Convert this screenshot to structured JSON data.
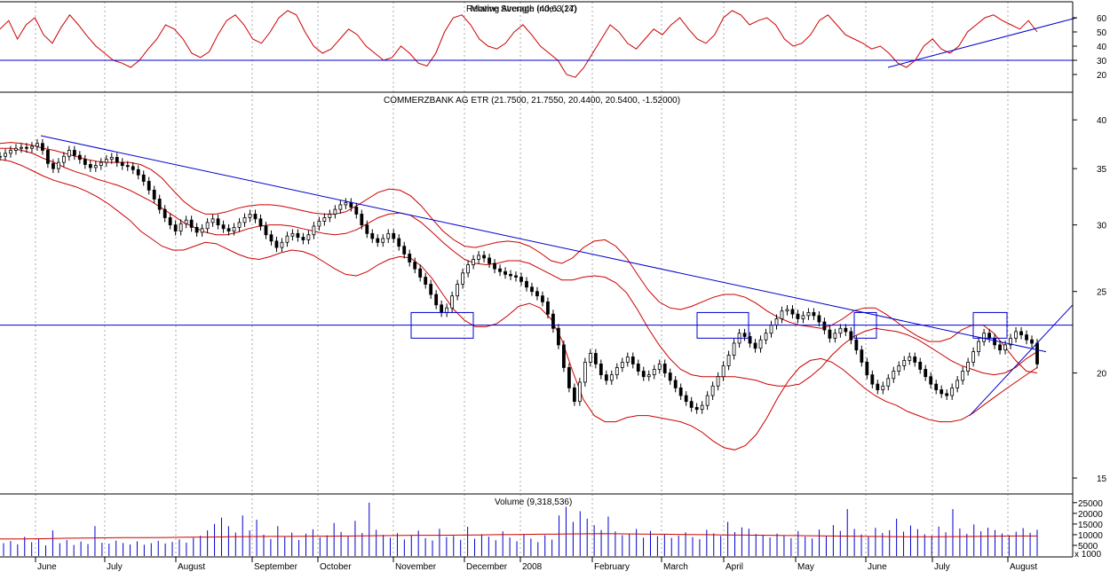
{
  "chart_data": [
    {
      "type": "line",
      "title": "Relative Strength Index (14)",
      "title_overlap": "Moving Average (40,63,27)",
      "series": [
        {
          "name": "RSI",
          "values": [
            52,
            58,
            45,
            55,
            60,
            48,
            42,
            53,
            62,
            55,
            47,
            40,
            35,
            30,
            28,
            25,
            30,
            38,
            45,
            55,
            52,
            45,
            35,
            32,
            36,
            48,
            58,
            62,
            55,
            45,
            42,
            50,
            60,
            65,
            62,
            50,
            40,
            35,
            38,
            45,
            52,
            48,
            40,
            35,
            30,
            32,
            40,
            35,
            28,
            26,
            35,
            50,
            60,
            62,
            55,
            45,
            40,
            38,
            42,
            50,
            55,
            48,
            40,
            35,
            30,
            20,
            18,
            25,
            35,
            45,
            55,
            50,
            42,
            38,
            45,
            52,
            48,
            55,
            60,
            52,
            45,
            42,
            48,
            60,
            65,
            62,
            55,
            58,
            60,
            55,
            45,
            40,
            42,
            48,
            58,
            62,
            55,
            48,
            45,
            42,
            38,
            40,
            35,
            28,
            25,
            30,
            40,
            45,
            38,
            35,
            40,
            50,
            55,
            60,
            62,
            58,
            55,
            52,
            58,
            50
          ]
        }
      ],
      "hlines": [
        30
      ],
      "ylim": [
        10,
        70
      ],
      "yticks": [
        20,
        30,
        40,
        50,
        60
      ],
      "trendline": {
        "from": [
          0.8,
          25
        ],
        "to": [
          0.97,
          60
        ]
      }
    },
    {
      "type": "candlestick",
      "title": "COMMERZBANK AG  ETR (21.7500, 21.7550, 20.4400, 20.5400, -1.52000)",
      "yscale": "log",
      "ylim": [
        14.5,
        41.5
      ],
      "yticks": [
        15,
        20,
        25,
        30,
        35,
        40
      ],
      "close": [
        36.2,
        36.5,
        36.8,
        37.0,
        37.1,
        37.0,
        37.2,
        37.5,
        36.8,
        35.5,
        35.0,
        35.6,
        36.2,
        36.8,
        36.3,
        35.9,
        35.4,
        35.1,
        35.3,
        35.6,
        35.9,
        36.1,
        35.6,
        35.3,
        35.2,
        34.9,
        34.4,
        33.8,
        33.0,
        32.2,
        31.3,
        30.6,
        30.0,
        29.5,
        30.1,
        30.4,
        29.8,
        29.4,
        29.7,
        30.2,
        30.5,
        30.0,
        29.7,
        29.5,
        29.8,
        30.2,
        30.6,
        30.9,
        30.5,
        29.9,
        29.2,
        28.7,
        28.2,
        28.6,
        29.1,
        29.3,
        29.0,
        28.8,
        29.2,
        29.9,
        30.3,
        30.6,
        30.9,
        31.3,
        31.7,
        31.9,
        31.5,
        30.9,
        30.0,
        29.3,
        28.9,
        28.6,
        28.9,
        29.3,
        28.9,
        28.3,
        27.7,
        27.1,
        26.6,
        26.0,
        25.5,
        24.8,
        24.1,
        23.6,
        23.9,
        24.7,
        25.5,
        26.3,
        26.9,
        27.3,
        27.6,
        27.4,
        27.0,
        26.6,
        26.4,
        26.2,
        26.1,
        26.0,
        25.7,
        25.3,
        25.0,
        24.7,
        24.3,
        23.5,
        22.6,
        21.6,
        20.3,
        19.2,
        18.5,
        19.5,
        20.6,
        21.1,
        20.5,
        19.9,
        19.6,
        19.9,
        20.3,
        20.6,
        20.9,
        20.5,
        20.1,
        19.8,
        19.9,
        20.2,
        20.5,
        20.0,
        19.6,
        19.2,
        18.8,
        18.5,
        18.2,
        18.1,
        18.3,
        18.8,
        19.3,
        19.8,
        20.4,
        21.0,
        21.7,
        22.3,
        22.1,
        21.7,
        21.4,
        21.9,
        22.3,
        22.8,
        23.2,
        23.7,
        23.8,
        23.5,
        23.2,
        23.4,
        23.6,
        23.4,
        23.0,
        22.5,
        22.0,
        22.3,
        22.6,
        22.4,
        21.9,
        21.3,
        20.6,
        19.9,
        19.4,
        19.1,
        19.3,
        19.7,
        20.1,
        20.4,
        20.7,
        20.9,
        20.6,
        20.2,
        19.8,
        19.4,
        19.1,
        18.9,
        18.8,
        19.2,
        19.6,
        20.1,
        20.6,
        21.2,
        21.8,
        22.3,
        22.0,
        21.6,
        21.3,
        21.6,
        22.0,
        22.4,
        22.2,
        21.9,
        21.7,
        20.5
      ],
      "bollinger_upper": [
        37.5,
        37.6,
        37.5,
        37.3,
        37.0,
        36.8,
        36.5,
        36.2,
        35.9,
        35.7,
        35.6,
        35.6,
        35.6,
        35.4,
        34.9,
        34.1,
        33.0,
        32.0,
        31.3,
        30.9,
        30.9,
        31.1,
        31.4,
        31.6,
        31.7,
        31.7,
        31.6,
        31.4,
        31.2,
        31.0,
        30.9,
        30.9,
        31.1,
        31.6,
        32.2,
        32.8,
        33.1,
        33.0,
        32.5,
        31.6,
        30.5,
        29.5,
        28.8,
        28.3,
        28.2,
        28.4,
        28.6,
        28.7,
        28.6,
        28.3,
        27.8,
        27.2,
        27.0,
        27.4,
        28.2,
        28.7,
        28.8,
        28.3,
        27.4,
        26.2,
        25.1,
        24.3,
        23.9,
        23.8,
        24.0,
        24.3,
        24.6,
        24.8,
        24.8,
        24.6,
        24.2,
        23.7,
        23.3,
        23.0,
        22.8,
        22.7,
        22.6,
        22.8,
        23.2,
        23.7,
        23.9,
        23.9,
        23.5,
        23.0,
        22.5,
        22.1,
        21.8,
        21.8,
        22.0,
        22.5,
        22.8,
        22.8,
        22.3,
        21.5,
        20.7,
        20.1,
        20.0
      ],
      "bollinger_mid": [
        37.0,
        37.0,
        36.8,
        36.5,
        36.0,
        35.6,
        35.1,
        34.7,
        34.4,
        34.0,
        33.7,
        33.4,
        33.0,
        32.5,
        32.0,
        31.4,
        30.8,
        30.2,
        29.8,
        29.4,
        29.2,
        29.2,
        29.4,
        29.7,
        29.9,
        30.0,
        30.0,
        29.9,
        29.7,
        29.5,
        29.3,
        29.2,
        29.3,
        29.6,
        30.1,
        30.6,
        30.9,
        31.0,
        30.8,
        30.2,
        29.4,
        28.6,
        27.9,
        27.3,
        27.0,
        26.9,
        27.0,
        27.2,
        27.2,
        27.0,
        26.6,
        26.2,
        25.8,
        25.8,
        26.0,
        26.1,
        26.0,
        25.6,
        24.9,
        23.8,
        22.6,
        21.6,
        20.8,
        20.2,
        19.9,
        19.8,
        19.8,
        19.8,
        19.8,
        19.7,
        19.6,
        19.4,
        19.3,
        19.3,
        19.4,
        19.8,
        20.3,
        21.0,
        21.6,
        22.1,
        22.4,
        22.6,
        22.5,
        22.4,
        22.2,
        21.9,
        21.5,
        21.1,
        20.7,
        20.4,
        20.2,
        20.0,
        19.9,
        20.0,
        20.3,
        20.8,
        21.2
      ],
      "bollinger_lower": [
        35.9,
        35.7,
        35.3,
        34.8,
        34.3,
        33.9,
        33.6,
        33.3,
        32.9,
        32.4,
        31.8,
        31.1,
        30.4,
        29.5,
        28.9,
        28.3,
        28.0,
        28.0,
        28.3,
        28.6,
        28.5,
        28.1,
        27.7,
        27.4,
        27.3,
        27.5,
        27.8,
        28.0,
        27.9,
        27.6,
        27.1,
        26.6,
        26.2,
        26.1,
        26.4,
        26.9,
        27.3,
        27.5,
        27.4,
        26.8,
        25.9,
        24.8,
        23.8,
        23.1,
        22.7,
        22.7,
        22.9,
        23.4,
        24.0,
        24.2,
        23.9,
        23.2,
        21.9,
        20.1,
        18.6,
        17.8,
        17.5,
        17.5,
        17.7,
        17.8,
        17.8,
        17.7,
        17.6,
        17.5,
        17.3,
        17.0,
        16.6,
        16.3,
        16.2,
        16.4,
        16.9,
        17.7,
        18.7,
        19.6,
        20.3,
        20.7,
        20.8,
        20.6,
        20.2,
        19.7,
        19.2,
        18.8,
        18.5,
        18.3,
        18.0,
        17.8,
        17.6,
        17.5,
        17.5,
        17.6,
        17.9,
        18.3,
        18.7,
        19.1,
        19.5,
        19.9,
        20.3
      ],
      "horizontal_line": 22.8,
      "downtrend": {
        "from": [
          "June",
          38.3
        ],
        "to": [
          "August",
          21.2
        ]
      },
      "uptrend": {
        "from": [
          "July",
          17.8
        ],
        "to": [
          "August",
          24.1
        ]
      },
      "boxes": [
        "November",
        "March-April",
        "May-June",
        "July-August"
      ]
    },
    {
      "type": "bar",
      "title": "Volume (9,318,536)",
      "ylim": [
        0,
        27000
      ],
      "yticks": [
        5000,
        10000,
        15000,
        20000,
        25000
      ],
      "ytick_labels": [
        "5000",
        "10000",
        "15000",
        "20000",
        "25000"
      ],
      "unit_label": "x 1000",
      "values": [
        6000,
        7000,
        5500,
        9000,
        6500,
        8000,
        5000,
        12000,
        6000,
        7500,
        5200,
        6800,
        5600,
        14000,
        6200,
        5800,
        7200,
        6100,
        5400,
        6900,
        5300,
        6000,
        7100,
        5900,
        6600,
        7800,
        6300,
        8500,
        9500,
        12000,
        15000,
        18000,
        14000,
        11000,
        19000,
        12000,
        17000,
        10000,
        8000,
        14000,
        9000,
        11000,
        7500,
        10500,
        12500,
        8800,
        9700,
        15500,
        11300,
        9200,
        16500,
        10800,
        25000,
        12300,
        9900,
        8600,
        10700,
        7800,
        9600,
        11900,
        8400,
        7300,
        12800,
        8900,
        9400,
        7600,
        13700,
        8100,
        10200,
        9100,
        7400,
        11600,
        8700,
        6900,
        10300,
        8200,
        6500,
        9800,
        7700,
        19000,
        23000,
        16000,
        21000,
        17500,
        14500,
        12200,
        18500,
        11500,
        9800,
        10400,
        12700,
        8600,
        11800,
        9300,
        10100,
        8500,
        9600,
        11100,
        8900,
        7900,
        12300,
        10600,
        9400,
        16000,
        11200,
        13400,
        12800,
        10300,
        9900,
        8700,
        10500,
        9500,
        8400,
        11700,
        9100,
        8200,
        12400,
        9300,
        14500,
        11800,
        22000,
        12700,
        10100,
        9300,
        13200,
        10800,
        12100,
        17500,
        11400,
        14300,
        12600,
        10200,
        9500,
        13800,
        11100,
        22000,
        12900,
        10400,
        14800,
        11600,
        13300,
        12200,
        10600,
        9700,
        11400,
        13100,
        10900,
        12300
      ],
      "volume_ma": [
        8000,
        8000,
        8100,
        8300,
        8400,
        8500,
        8600,
        8600,
        8700,
        8800,
        8900,
        9000,
        9100,
        9200,
        9200,
        9300,
        9300,
        9400,
        9500,
        9600,
        9700,
        9700,
        9800,
        9900,
        10000,
        10100,
        10200,
        10300,
        10400,
        10500,
        10400,
        10300,
        10200,
        10100,
        10000,
        9900,
        9800,
        9700,
        9600,
        9500,
        9400,
        9300,
        9200,
        9100,
        9000,
        9000,
        9100,
        9200,
        9300,
        9400,
        9400
      ]
    }
  ],
  "months": [
    "June",
    "July",
    "August",
    "September",
    "October",
    "November",
    "December",
    "2008",
    "February",
    "March",
    "April",
    "May",
    "June",
    "July",
    "August"
  ],
  "colors": {
    "price": "#000000",
    "bollinger": "#cc0000",
    "trend": "#0000cc",
    "grid": "#aaaaaa",
    "volume": "#0000cc",
    "rsi": "#cc0000"
  }
}
